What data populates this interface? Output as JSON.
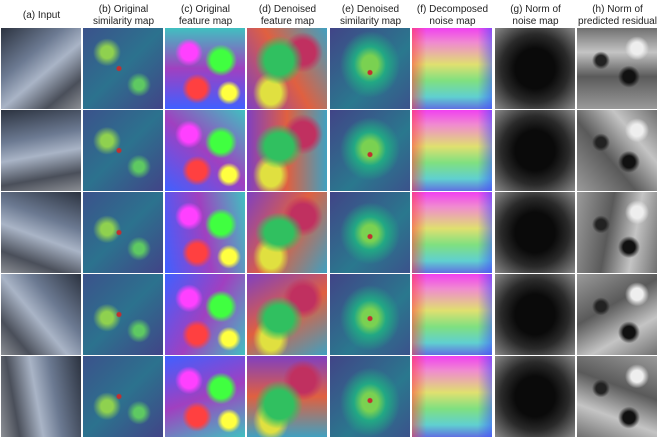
{
  "figure": {
    "columns": [
      {
        "lines": [
          "(a) Input"
        ]
      },
      {
        "lines": [
          "(b) Original",
          "similarity map"
        ]
      },
      {
        "lines": [
          "(c) Original",
          "feature map"
        ]
      },
      {
        "lines": [
          "(d) Denoised",
          "feature map"
        ]
      },
      {
        "lines": [
          "(e) Denoised",
          "similarity map"
        ]
      },
      {
        "lines": [
          "(f) Decomposed",
          "noise map"
        ]
      },
      {
        "lines": [
          "(g) Norm of",
          "noise map"
        ]
      },
      {
        "lines": [
          "(h) Norm of",
          "predicted residual"
        ]
      }
    ]
  }
}
